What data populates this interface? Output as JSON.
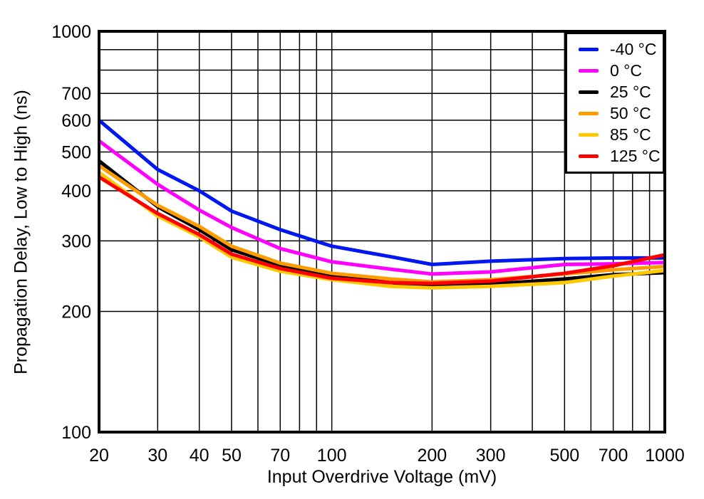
{
  "chart_data": {
    "type": "line",
    "title": "",
    "xlabel": "Input Overdrive Voltage (mV)",
    "ylabel": "Propagation Delay, Low to High (ns)",
    "x_scale": "log",
    "y_scale": "log",
    "xlim": [
      20,
      1000
    ],
    "ylim": [
      100,
      1000
    ],
    "grid": true,
    "legend_position": "top-right-inside",
    "x_gridlines": [
      30,
      40,
      50,
      60,
      70,
      80,
      90,
      100,
      200,
      300,
      400,
      500,
      600,
      700,
      800,
      900
    ],
    "y_gridlines": [
      200,
      300,
      400,
      500,
      600,
      700,
      800,
      900
    ],
    "x_tick_labels": [
      "20",
      "30",
      "40",
      "50",
      "70",
      "100",
      "200",
      "300",
      "500",
      "700",
      "1000"
    ],
    "x_tick_values": [
      20,
      30,
      40,
      50,
      70,
      100,
      200,
      300,
      500,
      700,
      1000
    ],
    "y_tick_labels": [
      "100",
      "200",
      "300",
      "400",
      "500",
      "600",
      "700",
      "1000"
    ],
    "y_tick_values": [
      100,
      200,
      300,
      400,
      500,
      600,
      700,
      1000
    ],
    "x": [
      20,
      30,
      40,
      50,
      70,
      100,
      150,
      200,
      300,
      500,
      700,
      1000
    ],
    "series": [
      {
        "name": "-40 °C",
        "color": "#0018F0",
        "values": [
          600,
          452,
          400,
          356,
          320,
          291,
          274,
          262,
          267,
          271,
          272,
          272
        ]
      },
      {
        "name": "0 °C",
        "color": "#FF00FF",
        "values": [
          533,
          415,
          358,
          324,
          287,
          266,
          255,
          248,
          251,
          262,
          263,
          265
        ]
      },
      {
        "name": "25 °C",
        "color": "#000000",
        "values": [
          475,
          365,
          320,
          285,
          261,
          246,
          236,
          231,
          234,
          241,
          247,
          250
        ]
      },
      {
        "name": "50 °C",
        "color": "#FF9C00",
        "values": [
          462,
          368,
          326,
          291,
          264,
          249,
          241,
          237,
          240,
          248,
          254,
          259
        ]
      },
      {
        "name": "85 °C",
        "color": "#FFC800",
        "values": [
          445,
          346,
          307,
          273,
          252,
          240,
          231,
          229,
          231,
          236,
          245,
          253
        ]
      },
      {
        "name": "125 °C",
        "color": "#FF0000",
        "values": [
          433,
          351,
          311,
          278,
          256,
          242,
          236,
          235,
          238,
          249,
          260,
          277
        ]
      }
    ],
    "plot_style": {
      "line_width": 5,
      "border_width": 4,
      "grid_color": "#000000",
      "grid_width": 1.5,
      "tick_font_size": 25
    }
  }
}
